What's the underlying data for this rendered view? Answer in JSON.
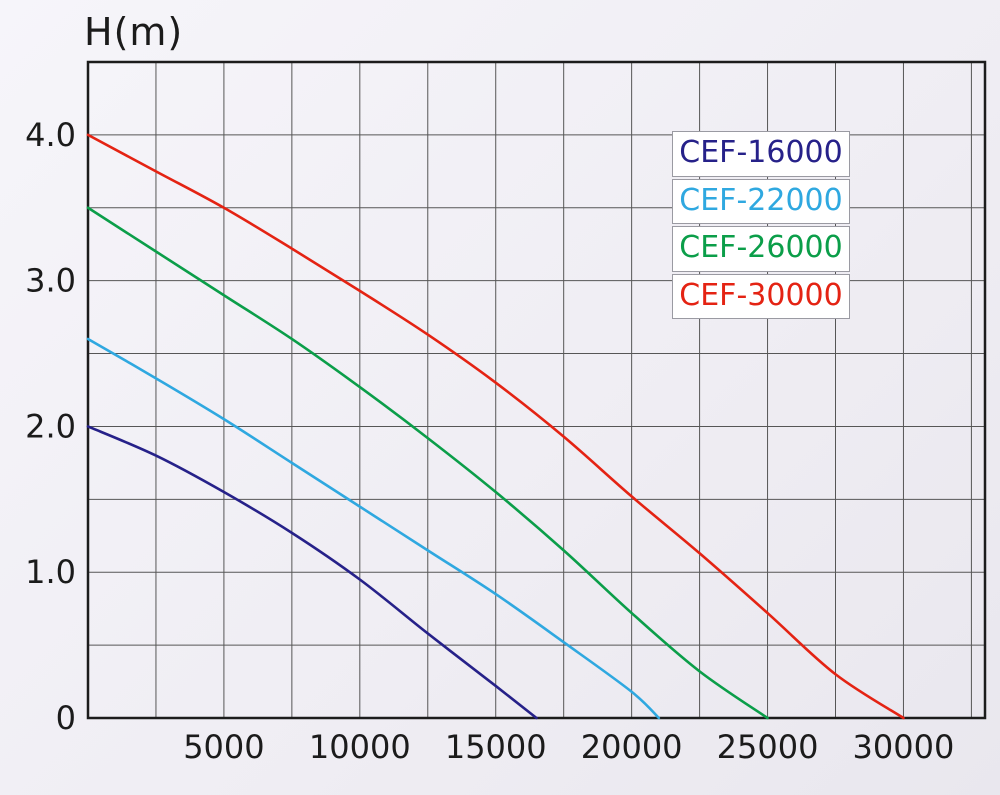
{
  "chart_data": {
    "type": "line",
    "title": "H(m)",
    "xlabel": "",
    "ylabel": "H(m)",
    "xlim": [
      0,
      33000
    ],
    "ylim": [
      0,
      4.5
    ],
    "grid": {
      "on": true,
      "x_step": 2500,
      "y_step": 0.5,
      "color": "#565656"
    },
    "legend_position": "top-right",
    "x_ticks": [
      {
        "value": 5000,
        "label": "5000"
      },
      {
        "value": 10000,
        "label": "10000"
      },
      {
        "value": 15000,
        "label": "15000"
      },
      {
        "value": 20000,
        "label": "20000"
      },
      {
        "value": 25000,
        "label": "25000"
      },
      {
        "value": 30000,
        "label": "30000"
      }
    ],
    "y_ticks": [
      {
        "value": 0,
        "label": "0"
      },
      {
        "value": 1.0,
        "label": "1.0"
      },
      {
        "value": 2.0,
        "label": "2.0"
      },
      {
        "value": 3.0,
        "label": "3.0"
      },
      {
        "value": 4.0,
        "label": "4.0"
      }
    ],
    "series": [
      {
        "name": "CEF-16000",
        "color": "#262189",
        "points": [
          [
            0,
            2.0
          ],
          [
            2500,
            1.8
          ],
          [
            5000,
            1.55
          ],
          [
            7500,
            1.27
          ],
          [
            10000,
            0.95
          ],
          [
            12500,
            0.58
          ],
          [
            15000,
            0.22
          ],
          [
            16500,
            0
          ]
        ]
      },
      {
        "name": "CEF-22000",
        "color": "#2fa8e0",
        "points": [
          [
            0,
            2.6
          ],
          [
            2500,
            2.33
          ],
          [
            5000,
            2.05
          ],
          [
            7500,
            1.75
          ],
          [
            10000,
            1.45
          ],
          [
            12500,
            1.15
          ],
          [
            15000,
            0.85
          ],
          [
            17500,
            0.52
          ],
          [
            20000,
            0.18
          ],
          [
            21000,
            0
          ]
        ]
      },
      {
        "name": "CEF-26000",
        "color": "#0b9e49",
        "points": [
          [
            0,
            3.5
          ],
          [
            2500,
            3.2
          ],
          [
            5000,
            2.9
          ],
          [
            7500,
            2.6
          ],
          [
            10000,
            2.27
          ],
          [
            12500,
            1.92
          ],
          [
            15000,
            1.55
          ],
          [
            17500,
            1.15
          ],
          [
            20000,
            0.72
          ],
          [
            22500,
            0.32
          ],
          [
            25000,
            0
          ]
        ]
      },
      {
        "name": "CEF-30000",
        "color": "#e42313",
        "points": [
          [
            0,
            4.0
          ],
          [
            2500,
            3.75
          ],
          [
            5000,
            3.5
          ],
          [
            7500,
            3.22
          ],
          [
            10000,
            2.93
          ],
          [
            12500,
            2.63
          ],
          [
            15000,
            2.3
          ],
          [
            17500,
            1.93
          ],
          [
            20000,
            1.52
          ],
          [
            22500,
            1.13
          ],
          [
            25000,
            0.72
          ],
          [
            27500,
            0.3
          ],
          [
            30000,
            0
          ]
        ]
      }
    ]
  }
}
